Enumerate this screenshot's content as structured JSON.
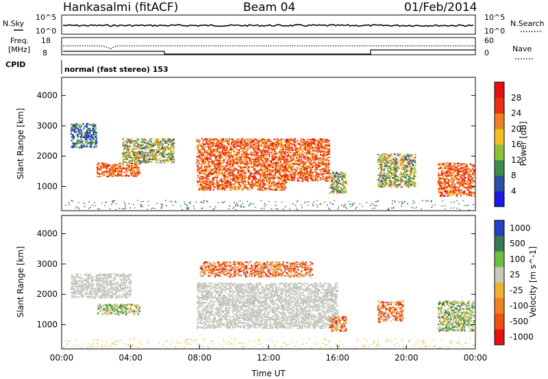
{
  "header": {
    "title": "Hankasalmi (fitACF)",
    "beam": "Beam 04",
    "date": "01/Feb/2014"
  },
  "sky_panel": {
    "left_label": "N.Sky",
    "right_label": "N.Search",
    "left_ticks": [
      "10^5",
      "10^0"
    ],
    "right_ticks": [
      "10^5",
      "10^0"
    ]
  },
  "freq_panel": {
    "left_label_line1": "Freq.",
    "left_label_line2": "[MHz]",
    "left_ticks": [
      "18",
      "8"
    ],
    "right_label": "Nave",
    "right_ticks": [
      "60",
      "0"
    ]
  },
  "cpid": {
    "label": "CPID",
    "text": "normal (fast stereo) 153"
  },
  "x_axis": {
    "label": "Time UT",
    "ticks": [
      "00:00",
      "04:00",
      "08:00",
      "12:00",
      "16:00",
      "20:00",
      "00:00"
    ]
  },
  "chart_data": [
    {
      "type": "heatmap",
      "title": "",
      "xlabel": "Time UT",
      "ylabel": "Slant Range [km]",
      "ylim": [
        200,
        4600
      ],
      "y_ticks": [
        "1000",
        "2000",
        "3000",
        "4000"
      ],
      "colorbar_label": "Power [dB]",
      "colorbar_ticks": [
        "4",
        "8",
        "12",
        "16",
        "20",
        "24",
        "28"
      ],
      "colorbar_colors": [
        "#1a1ae6",
        "#2d4fa8",
        "#3e8a4a",
        "#88c23a",
        "#f0c020",
        "#f08020",
        "#e83010",
        "#e81010"
      ],
      "regions": [
        {
          "t": [
            0.5,
            2.0
          ],
          "r": [
            2300,
            3100
          ],
          "level": "low"
        },
        {
          "t": [
            2.0,
            4.5
          ],
          "r": [
            1350,
            1800
          ],
          "level": "high"
        },
        {
          "t": [
            3.5,
            6.5
          ],
          "r": [
            1800,
            2600
          ],
          "level": "mid"
        },
        {
          "t": [
            7.8,
            13.0
          ],
          "r": [
            900,
            2600
          ],
          "level": "high"
        },
        {
          "t": [
            13.0,
            15.5
          ],
          "r": [
            1200,
            2600
          ],
          "level": "high"
        },
        {
          "t": [
            15.5,
            16.5
          ],
          "r": [
            800,
            1500
          ],
          "level": "mid"
        },
        {
          "t": [
            18.3,
            20.5
          ],
          "r": [
            1000,
            2100
          ],
          "level": "mid"
        },
        {
          "t": [
            21.8,
            23.9
          ],
          "r": [
            700,
            1800
          ],
          "level": "high"
        }
      ]
    },
    {
      "type": "heatmap",
      "title": "",
      "xlabel": "Time UT",
      "ylabel": "Slant Range [km]",
      "ylim": [
        200,
        4600
      ],
      "y_ticks": [
        "1000",
        "2000",
        "3000",
        "4000"
      ],
      "colorbar_label": "Velocity [m s^-1]",
      "colorbar_ticks": [
        "1000",
        "500",
        "100",
        "25",
        "-25",
        "-100",
        "-500",
        "-1000"
      ],
      "colorbar_colors": [
        "#2040c8",
        "#3a7a50",
        "#6cc040",
        "#c8c8c0",
        "#f0b030",
        "#f08020",
        "#f05010",
        "#e81010"
      ],
      "regions": [
        {
          "t": [
            0.5,
            4.0
          ],
          "r": [
            1900,
            2700
          ],
          "level": "ground"
        },
        {
          "t": [
            2.0,
            4.5
          ],
          "r": [
            1350,
            1700
          ],
          "level": "green"
        },
        {
          "t": [
            7.8,
            16.0
          ],
          "r": [
            900,
            2400
          ],
          "level": "ground"
        },
        {
          "t": [
            8.0,
            14.5
          ],
          "r": [
            2600,
            3100
          ],
          "level": "orange"
        },
        {
          "t": [
            15.5,
            16.5
          ],
          "r": [
            800,
            1300
          ],
          "level": "orange"
        },
        {
          "t": [
            18.3,
            19.8
          ],
          "r": [
            1100,
            1800
          ],
          "level": "orange"
        },
        {
          "t": [
            21.8,
            23.9
          ],
          "r": [
            800,
            1800
          ],
          "level": "green"
        }
      ]
    }
  ]
}
